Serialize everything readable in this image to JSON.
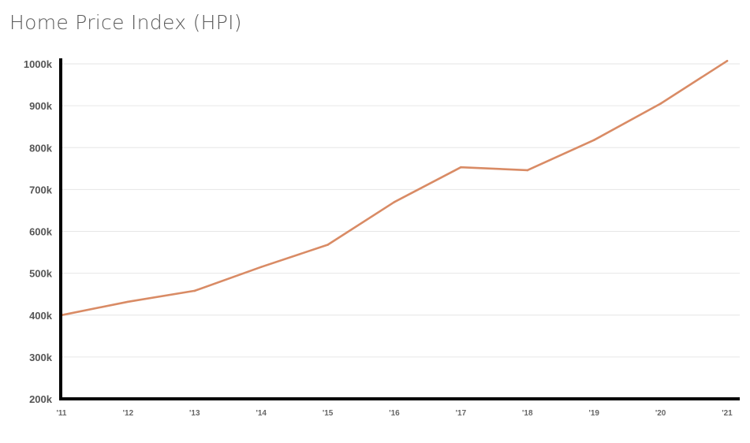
{
  "chart_data": {
    "type": "line",
    "title": "Home Price Index (HPI)",
    "xlabel": "",
    "ylabel": "",
    "categories": [
      "'11",
      "'12",
      "'13",
      "'14",
      "'15",
      "'16",
      "'17",
      "'18",
      "'19",
      "'20",
      "'21"
    ],
    "series": [
      {
        "values": [
          400000,
          432000,
          458000,
          515000,
          568000,
          670000,
          753000,
          746000,
          818000,
          905000,
          1007000
        ],
        "color": "#d98b65"
      }
    ],
    "yticks": [
      200000,
      300000,
      400000,
      500000,
      600000,
      700000,
      800000,
      900000,
      1000000
    ],
    "ytick_labels": [
      "200k",
      "300k",
      "400k",
      "500k",
      "600k",
      "700k",
      "800k",
      "900k",
      "1000k"
    ],
    "ylim": [
      200000,
      1000000
    ],
    "grid": true,
    "legend": "none"
  }
}
